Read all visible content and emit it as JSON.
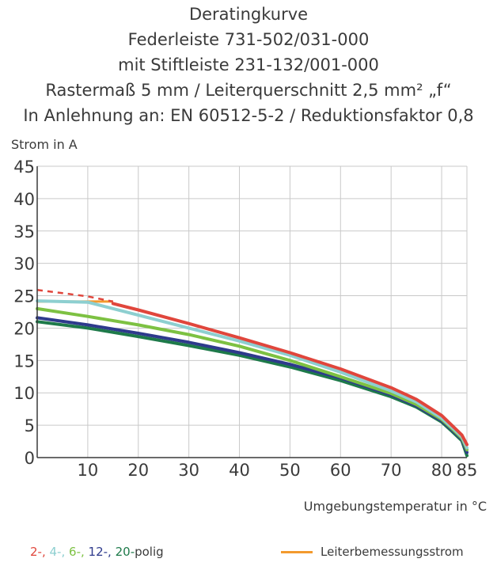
{
  "title_lines": [
    "Deratingkurve",
    "Federleiste 731-502/031-000",
    "mit Stiftleiste 231-132/001-000",
    "Rastermaß 5 mm / Leiterquerschnitt 2,5 mm² „f“",
    "In Anlehnung an: EN 60512-5-2 / Reduktionsfaktor 0,8"
  ],
  "chart_data": {
    "type": "line",
    "ylabel": "Strom in A",
    "xlabel": "Umgebungstemperatur in °C",
    "xlim": [
      0,
      85
    ],
    "ylim": [
      0,
      45
    ],
    "x_ticks": [
      10,
      20,
      30,
      40,
      50,
      60,
      70,
      80,
      85
    ],
    "y_ticks": [
      0,
      5,
      10,
      15,
      20,
      25,
      30,
      35,
      40,
      45
    ],
    "grid": true,
    "legend_position": "bottom",
    "series": [
      {
        "name": "2-",
        "color": "#e0463c",
        "x": [
          15,
          20,
          30,
          40,
          50,
          60,
          70,
          75,
          80,
          82,
          84,
          85
        ],
        "y": [
          23.8,
          22.8,
          20.7,
          18.5,
          16.2,
          13.7,
          10.8,
          9.0,
          6.5,
          5.0,
          3.5,
          2.0
        ],
        "dashed_segment": {
          "x": [
            0,
            5,
            10,
            15
          ],
          "y": [
            25.9,
            25.4,
            24.9,
            24.1
          ]
        }
      },
      {
        "name": "4-",
        "color": "#8dcfd0",
        "x": [
          0,
          10,
          20,
          30,
          40,
          50,
          60,
          70,
          75,
          80,
          82,
          84,
          85
        ],
        "y": [
          24.2,
          24.0,
          22.0,
          20.0,
          18.0,
          15.8,
          13.2,
          10.3,
          8.6,
          6.1,
          4.7,
          3.2,
          1.5
        ]
      },
      {
        "name": "6-",
        "color": "#7dc142",
        "x": [
          0,
          10,
          20,
          30,
          40,
          50,
          60,
          70,
          75,
          80,
          82,
          84,
          85
        ],
        "y": [
          23.0,
          21.8,
          20.5,
          19.0,
          17.2,
          15.0,
          12.5,
          9.9,
          8.2,
          5.9,
          4.5,
          3.0,
          1.2
        ]
      },
      {
        "name": "12-",
        "color": "#2e3a8c",
        "x": [
          0,
          10,
          20,
          30,
          40,
          50,
          60,
          70,
          75,
          80,
          82,
          84,
          85
        ],
        "y": [
          21.6,
          20.5,
          19.2,
          17.8,
          16.2,
          14.4,
          12.3,
          9.7,
          8.0,
          5.7,
          4.3,
          2.8,
          0.8
        ]
      },
      {
        "name": "20-",
        "color": "#1e7a4a",
        "x": [
          0,
          10,
          20,
          30,
          40,
          50,
          60,
          70,
          75,
          80,
          82,
          84,
          85
        ],
        "y": [
          21.0,
          20.0,
          18.7,
          17.3,
          15.8,
          14.0,
          11.9,
          9.4,
          7.8,
          5.5,
          4.1,
          2.6,
          0.3
        ]
      }
    ],
    "reference_line": {
      "name": "Leiterbemessungsstrom",
      "color": "#f39a2e",
      "x": [
        0,
        15
      ],
      "y": [
        24.1,
        24.1
      ]
    }
  },
  "legend": {
    "items": [
      {
        "label": "2-,",
        "color": "#e0463c"
      },
      {
        "label": "4-,",
        "color": "#8dcfd0"
      },
      {
        "label": "6-,",
        "color": "#7dc142"
      },
      {
        "label": "12-,",
        "color": "#2e3a8c"
      },
      {
        "label": "20-",
        "color": "#1e7a4a"
      }
    ],
    "suffix": "polig",
    "rated_current_label": "Leiterbemessungsstrom",
    "rated_current_color": "#f39a2e"
  }
}
